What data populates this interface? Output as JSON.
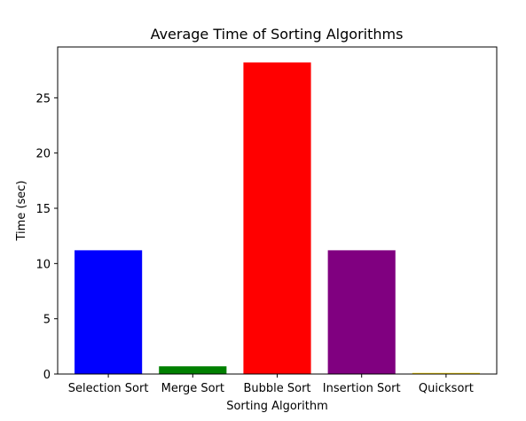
{
  "chart_data": {
    "type": "bar",
    "title": "Average Time of Sorting Algorithms",
    "xlabel": "Sorting Algorithm",
    "ylabel": "Time (sec)",
    "categories": [
      "Selection Sort",
      "Merge Sort",
      "Bubble Sort",
      "Insertion Sort",
      "Quicksort"
    ],
    "values": [
      11.2,
      0.7,
      28.2,
      11.2,
      0.1
    ],
    "colors": [
      "#0000ff",
      "#008000",
      "#ff0000",
      "#800080",
      "#ffd700"
    ],
    "ylim": [
      0,
      29.6
    ],
    "yticks": [
      0,
      5,
      10,
      15,
      20,
      25
    ],
    "grid": false,
    "legend": "none"
  }
}
